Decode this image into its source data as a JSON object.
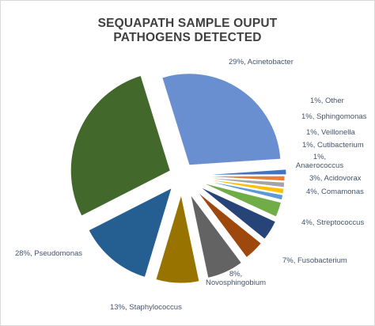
{
  "title_line1": "SEQUAPATH SAMPLE OUPUT",
  "title_line2": "PATHOGENS  DETECTED",
  "chart_data": {
    "type": "pie",
    "exploded": true,
    "title": "SEQUAPATH SAMPLE OUPUT PATHOGENS DETECTED",
    "legend": "none",
    "slices": [
      {
        "label": "Acinetobacter",
        "value": 29,
        "color": "#6a8fd0",
        "text": [
          "29%, Acinetobacter"
        ]
      },
      {
        "label": "Other",
        "value": 1,
        "color": "#4472c4",
        "text": [
          "1%, Other"
        ]
      },
      {
        "label": "Sphingomonas",
        "value": 1,
        "color": "#ed7d31",
        "text": [
          "1%, Sphingomonas"
        ]
      },
      {
        "label": "Veillonella",
        "value": 1,
        "color": "#a5a5a5",
        "text": [
          "1%, Veillonella"
        ]
      },
      {
        "label": "Cutibacterium",
        "value": 1,
        "color": "#ffc000",
        "text": [
          "1%, Cutibacterium"
        ]
      },
      {
        "label": "Anaerococcus",
        "value": 1,
        "color": "#5b9bd5",
        "text": [
          "1%,",
          "Anaerococcus"
        ]
      },
      {
        "label": "Acidovorax",
        "value": 3,
        "color": "#70ad47",
        "text": [
          "3%, Acidovorax"
        ]
      },
      {
        "label": "Comamonas",
        "value": 4,
        "color": "#264478",
        "text": [
          "4%, Comamonas"
        ]
      },
      {
        "label": "Streptococcus",
        "value": 4,
        "color": "#9e480e",
        "text": [
          "4%, Streptococcus"
        ]
      },
      {
        "label": "Fusobacterium",
        "value": 7,
        "color": "#636363",
        "text": [
          "7%, Fusobacterium"
        ]
      },
      {
        "label": "Novosphingobium",
        "value": 8,
        "color": "#997300",
        "text": [
          "8%,",
          "Novosphingobium"
        ]
      },
      {
        "label": "Staphylococcus",
        "value": 13,
        "color": "#255e91",
        "text": [
          "13%, Staphylococcus"
        ]
      },
      {
        "label": "Pseudomonas",
        "value": 28,
        "color": "#43682b",
        "text": [
          "28%, Pseudomonas"
        ]
      }
    ]
  }
}
